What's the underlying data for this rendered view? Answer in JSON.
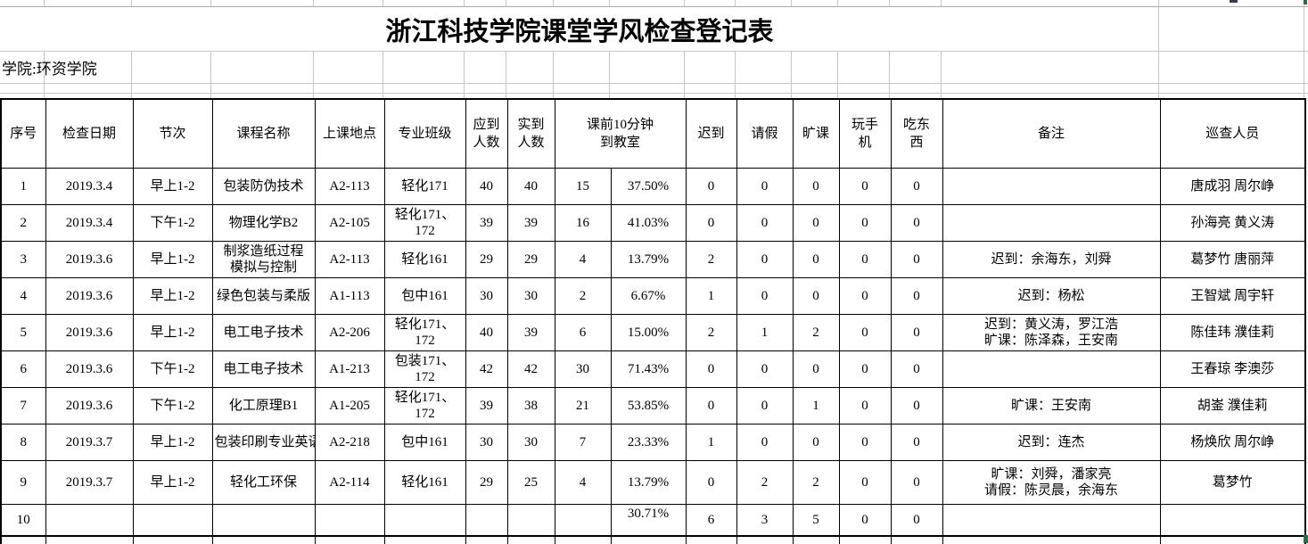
{
  "title": "浙江科技学院课堂学风检查登记表",
  "college_line": "学院:环资学院",
  "colors": {
    "background": "#ffffff",
    "grid_line": "#c6c6c6",
    "table_border": "#000000",
    "selection_green": "#217346"
  },
  "table": {
    "headers": {
      "no": "序号",
      "date": "检查日期",
      "period": "节次",
      "course": "课程名称",
      "location": "上课地点",
      "class": "专业班级",
      "expected": "应到\n人数",
      "actual": "实到\n人数",
      "early": "课前10分钟\n到教室",
      "late": "迟到",
      "leave": "请假",
      "absent": "旷课",
      "phone": "玩手\n机",
      "eat": "吃东\n西",
      "remark": "备注",
      "inspectors": "巡查人员"
    },
    "rows": [
      {
        "no": "1",
        "date": "2019.3.4",
        "period": "早上1-2",
        "course": "包装防伪技术",
        "location": "A2-113",
        "class": "轻化171",
        "expected": "40",
        "actual": "40",
        "early_count": "15",
        "early_pct": "37.50%",
        "late": "0",
        "leave": "0",
        "absent": "0",
        "phone": "0",
        "eat": "0",
        "remark": "",
        "inspectors": "唐成羽 周尔峥"
      },
      {
        "no": "2",
        "date": "2019.3.4",
        "period": "下午1-2",
        "course": "物理化学B2",
        "location": "A2-105",
        "class": "轻化171、\n172",
        "expected": "39",
        "actual": "39",
        "early_count": "16",
        "early_pct": "41.03%",
        "late": "0",
        "leave": "0",
        "absent": "0",
        "phone": "0",
        "eat": "0",
        "remark": "",
        "inspectors": "孙海亮 黄义涛"
      },
      {
        "no": "3",
        "date": "2019.3.6",
        "period": "早上1-2",
        "course": "制浆造纸过程\n模拟与控制",
        "location": "A2-113",
        "class": "轻化161",
        "expected": "29",
        "actual": "29",
        "early_count": "4",
        "early_pct": "13.79%",
        "late": "2",
        "leave": "0",
        "absent": "0",
        "phone": "0",
        "eat": "0",
        "remark": "迟到：余海东，刘舜",
        "inspectors": "葛梦竹 唐丽萍"
      },
      {
        "no": "4",
        "date": "2019.3.6",
        "period": "早上1-2",
        "course": "绿色包装与柔版",
        "location": "A1-113",
        "class": "包中161",
        "expected": "30",
        "actual": "30",
        "early_count": "2",
        "early_pct": "6.67%",
        "late": "1",
        "leave": "0",
        "absent": "0",
        "phone": "0",
        "eat": "0",
        "remark": "迟到：杨松",
        "inspectors": "王智斌 周宇轩"
      },
      {
        "no": "5",
        "date": "2019.3.6",
        "period": "早上1-2",
        "course": "电工电子技术",
        "location": "A2-206",
        "class": "轻化171、\n172",
        "expected": "40",
        "actual": "39",
        "early_count": "6",
        "early_pct": "15.00%",
        "late": "2",
        "leave": "1",
        "absent": "2",
        "phone": "0",
        "eat": "0",
        "remark": "迟到：黄义涛，罗江浩\n旷课：陈泽森，王安南",
        "inspectors": "陈佳玮 濮佳莉"
      },
      {
        "no": "6",
        "date": "2019.3.6",
        "period": "下午1-2",
        "course": "电工电子技术",
        "location": "A1-213",
        "class": "包装171、\n172",
        "expected": "42",
        "actual": "42",
        "early_count": "30",
        "early_pct": "71.43%",
        "late": "0",
        "leave": "0",
        "absent": "0",
        "phone": "0",
        "eat": "0",
        "remark": "",
        "inspectors": "王春琼 李澳莎"
      },
      {
        "no": "7",
        "date": "2019.3.6",
        "period": "下午1-2",
        "course": "化工原理B1",
        "location": "A1-205",
        "class": "轻化171、\n172",
        "expected": "39",
        "actual": "38",
        "early_count": "21",
        "early_pct": "53.85%",
        "late": "0",
        "leave": "0",
        "absent": "1",
        "phone": "0",
        "eat": "0",
        "remark": "旷课：王安南",
        "inspectors": "胡崟 濮佳莉"
      },
      {
        "no": "8",
        "date": "2019.3.7",
        "period": "早上1-2",
        "course": "包装印刷专业英语",
        "location": "A2-218",
        "class": "包中161",
        "expected": "30",
        "actual": "30",
        "early_count": "7",
        "early_pct": "23.33%",
        "late": "1",
        "leave": "0",
        "absent": "0",
        "phone": "0",
        "eat": "0",
        "remark": "迟到：连杰",
        "inspectors": "杨焕欣 周尔峥"
      },
      {
        "no": "9",
        "date": "2019.3.7",
        "period": "早上1-2",
        "course": "轻化工环保",
        "location": "A2-114",
        "class": "轻化161",
        "expected": "29",
        "actual": "25",
        "early_count": "4",
        "early_pct": "13.79%",
        "late": "0",
        "leave": "2",
        "absent": "2",
        "phone": "0",
        "eat": "0",
        "remark": "旷课：刘舜，潘家亮\n请假：陈灵晨，余海东",
        "inspectors": "葛梦竹"
      },
      {
        "no": "10",
        "date": "",
        "period": "",
        "course": "",
        "location": "",
        "class": "",
        "expected": "",
        "actual": "",
        "early_count": "",
        "early_pct": "30.71%",
        "late": "6",
        "leave": "3",
        "absent": "5",
        "phone": "0",
        "eat": "0",
        "remark": "",
        "inspectors": ""
      },
      {
        "no": "",
        "date": "",
        "period": "",
        "course": "",
        "location": "",
        "class": "",
        "expected": "",
        "actual": "",
        "early_count": "",
        "early_pct": "",
        "late": "",
        "leave": "",
        "absent": "",
        "phone": "",
        "eat": "",
        "remark": "",
        "inspectors": ""
      }
    ]
  }
}
